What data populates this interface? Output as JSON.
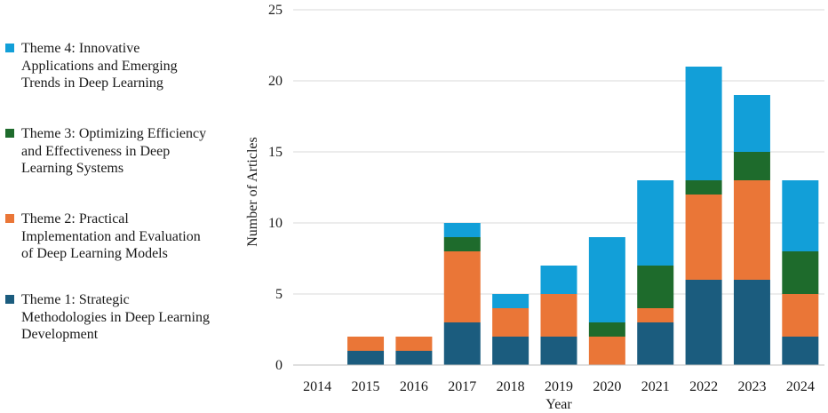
{
  "chart_data": {
    "type": "bar",
    "stacked": true,
    "categories": [
      "2014",
      "2015",
      "2016",
      "2017",
      "2018",
      "2019",
      "2020",
      "2021",
      "2022",
      "2023",
      "2024"
    ],
    "series": [
      {
        "name": "Theme 1: Strategic Methodologies in Deep Learning Development",
        "color": "#1b5c7e",
        "values": [
          0,
          1,
          1,
          3,
          2,
          2,
          0,
          3,
          6,
          6,
          2
        ]
      },
      {
        "name": "Theme 2: Practical Implementation and Evaluation of Deep Learning Models",
        "color": "#ea7637",
        "values": [
          0,
          1,
          1,
          5,
          2,
          3,
          2,
          1,
          6,
          7,
          3
        ]
      },
      {
        "name": "Theme 3: Optimizing Efficiency and Effectiveness in Deep Learning Systems",
        "color": "#1e6b2c",
        "values": [
          0,
          0,
          0,
          1,
          0,
          0,
          1,
          3,
          1,
          2,
          3
        ]
      },
      {
        "name": "Theme 4: Innovative Applications and Emerging Trends in Deep Learning",
        "color": "#129fd8",
        "values": [
          0,
          0,
          0,
          1,
          1,
          2,
          6,
          6,
          8,
          4,
          5
        ]
      }
    ],
    "xlabel": "Year",
    "ylabel": "Number of Articles",
    "ylim": [
      0,
      25
    ],
    "yticks": [
      0,
      5,
      10,
      15,
      20,
      25
    ],
    "grid": true,
    "legend_position": "left"
  },
  "legend": [
    {
      "lines": [
        "Theme 4: Innovative",
        "Applications and Emerging",
        "Trends in Deep Learning"
      ],
      "color": "#129fd8"
    },
    {
      "lines": [
        "Theme 3: Optimizing Efficiency",
        "and Effectiveness in Deep",
        "Learning Systems"
      ],
      "color": "#1e6b2c"
    },
    {
      "lines": [
        "Theme 2: Practical",
        "Implementation and Evaluation",
        "of Deep Learning Models"
      ],
      "color": "#ea7637"
    },
    {
      "lines": [
        "Theme 1: Strategic",
        "Methodologies in Deep Learning",
        "Development"
      ],
      "color": "#1b5c7e"
    }
  ]
}
